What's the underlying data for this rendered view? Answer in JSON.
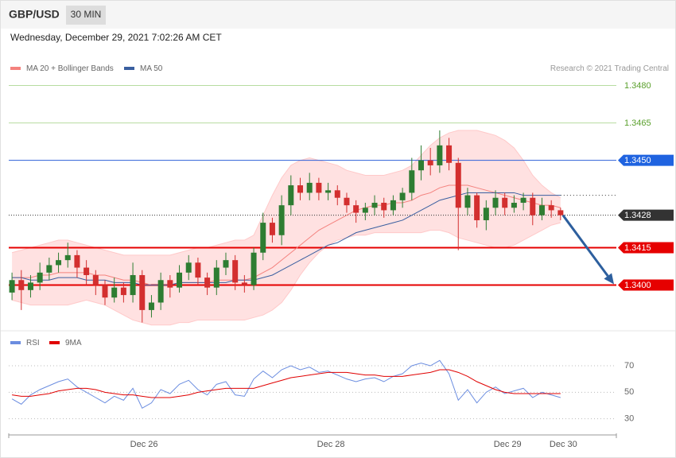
{
  "header": {
    "symbol": "GBP/USD",
    "timeframe": "30 MIN",
    "timestamp": "Wednesday, December 29, 2021 7:02:26 AM CET"
  },
  "chart_data": [
    {
      "type": "candlestick",
      "source": "Research © 2021 Trading Central",
      "up_color": "#2e7d32",
      "down_color": "#d32f2f",
      "band_color": "#ffc9c9",
      "open": [
        1.3397,
        1.3402,
        1.3398,
        1.3401,
        1.3405,
        1.3408,
        1.341,
        1.3412,
        1.3407,
        1.3404,
        1.34,
        1.3395,
        1.3399,
        1.3396,
        1.3404,
        1.339,
        1.3393,
        1.3402,
        1.3399,
        1.3405,
        1.3409,
        1.3403,
        1.3399,
        1.3407,
        1.341,
        1.3401,
        1.34,
        1.3413,
        1.3425,
        1.342,
        1.3432,
        1.344,
        1.3437,
        1.3441,
        1.3437,
        1.3438,
        1.3435,
        1.3432,
        1.3429,
        1.3431,
        1.3433,
        1.343,
        1.3434,
        1.3437,
        1.3446,
        1.345,
        1.3448,
        1.3456,
        1.3449,
        1.3431,
        1.3436,
        1.3426,
        1.3431,
        1.3435,
        1.3431,
        1.3433,
        1.3435,
        1.3428,
        1.3432,
        1.343
      ],
      "high": [
        1.3405,
        1.3406,
        1.3404,
        1.3409,
        1.3411,
        1.3413,
        1.3417,
        1.3414,
        1.341,
        1.3406,
        1.3402,
        1.3403,
        1.3401,
        1.3409,
        1.3406,
        1.3396,
        1.3405,
        1.3404,
        1.3408,
        1.3412,
        1.3411,
        1.3405,
        1.341,
        1.3413,
        1.3412,
        1.3404,
        1.3415,
        1.3429,
        1.3427,
        1.3436,
        1.3444,
        1.3443,
        1.3445,
        1.3443,
        1.3441,
        1.344,
        1.3437,
        1.3434,
        1.3433,
        1.3436,
        1.3435,
        1.3436,
        1.3439,
        1.3451,
        1.3456,
        1.3455,
        1.3462,
        1.3459,
        1.3451,
        1.3439,
        1.3437,
        1.3434,
        1.3438,
        1.3437,
        1.3436,
        1.3437,
        1.3437,
        1.3435,
        1.3434,
        1.3431
      ],
      "low": [
        1.3394,
        1.339,
        1.3395,
        1.3398,
        1.3402,
        1.3405,
        1.3407,
        1.3403,
        1.34,
        1.3396,
        1.3392,
        1.3393,
        1.3393,
        1.3393,
        1.3385,
        1.3387,
        1.339,
        1.3395,
        1.3397,
        1.3402,
        1.34,
        1.3396,
        1.3396,
        1.3404,
        1.3398,
        1.3397,
        1.3398,
        1.341,
        1.3417,
        1.3416,
        1.3428,
        1.3434,
        1.3434,
        1.3434,
        1.3434,
        1.3432,
        1.3429,
        1.3425,
        1.3426,
        1.3428,
        1.3427,
        1.3428,
        1.3431,
        1.3434,
        1.3442,
        1.3444,
        1.3445,
        1.3446,
        1.3414,
        1.3428,
        1.3423,
        1.3422,
        1.3428,
        1.3428,
        1.3429,
        1.343,
        1.3424,
        1.3426,
        1.3427,
        1.3426
      ],
      "close": [
        1.3402,
        1.3398,
        1.3401,
        1.3405,
        1.3408,
        1.341,
        1.3412,
        1.3407,
        1.3404,
        1.34,
        1.3395,
        1.3399,
        1.3396,
        1.3404,
        1.339,
        1.3393,
        1.3402,
        1.3399,
        1.3405,
        1.3409,
        1.3403,
        1.3399,
        1.3407,
        1.341,
        1.3401,
        1.34,
        1.3413,
        1.3425,
        1.342,
        1.3432,
        1.344,
        1.3437,
        1.3441,
        1.3437,
        1.3438,
        1.3435,
        1.3432,
        1.3429,
        1.3431,
        1.3433,
        1.343,
        1.3434,
        1.3437,
        1.3446,
        1.345,
        1.3448,
        1.3456,
        1.3449,
        1.3431,
        1.3436,
        1.3426,
        1.3431,
        1.3435,
        1.3431,
        1.3433,
        1.3435,
        1.3428,
        1.3432,
        1.343,
        1.3428
      ],
      "series": [
        {
          "name": "MA 20 + Bollinger Bands",
          "color": "#f4827e",
          "values": [
            1.3403,
            1.3403,
            1.3403,
            1.3404,
            1.3404,
            1.3405,
            1.3405,
            1.3405,
            1.3405,
            1.3404,
            1.3404,
            1.3403,
            1.3402,
            1.3402,
            1.3401,
            1.34,
            1.34,
            1.34,
            1.3401,
            1.3401,
            1.3401,
            1.3401,
            1.3402,
            1.3402,
            1.3402,
            1.3402,
            1.3403,
            1.3405,
            1.3407,
            1.341,
            1.3413,
            1.3416,
            1.3419,
            1.3422,
            1.3424,
            1.3426,
            1.3428,
            1.343,
            1.3431,
            1.3432,
            1.3432,
            1.3433,
            1.3433,
            1.3434,
            1.3436,
            1.3437,
            1.3439,
            1.344,
            1.344,
            1.344,
            1.3439,
            1.3438,
            1.3437,
            1.3436,
            1.3435,
            1.3434,
            1.3433,
            1.3432,
            1.3432,
            1.3431
          ],
          "upper": [
            1.3413,
            1.3414,
            1.3415,
            1.3416,
            1.3417,
            1.3418,
            1.3418,
            1.3417,
            1.3416,
            1.3415,
            1.3414,
            1.3413,
            1.3412,
            1.3412,
            1.3412,
            1.3412,
            1.3412,
            1.3412,
            1.3413,
            1.3414,
            1.3415,
            1.3415,
            1.3416,
            1.3417,
            1.3418,
            1.3418,
            1.342,
            1.3428,
            1.3436,
            1.3443,
            1.3448,
            1.345,
            1.3451,
            1.345,
            1.3449,
            1.3448,
            1.3446,
            1.3445,
            1.3444,
            1.3444,
            1.3444,
            1.3445,
            1.3446,
            1.3448,
            1.3452,
            1.3456,
            1.3459,
            1.3461,
            1.3462,
            1.3462,
            1.3462,
            1.3461,
            1.346,
            1.3458,
            1.3455,
            1.345,
            1.3444,
            1.344,
            1.3437,
            1.3435
          ],
          "lower": [
            1.3394,
            1.3393,
            1.3392,
            1.3392,
            1.3392,
            1.3392,
            1.3392,
            1.3393,
            1.3394,
            1.3393,
            1.3392,
            1.339,
            1.3388,
            1.3386,
            1.3385,
            1.3384,
            1.3384,
            1.3384,
            1.3385,
            1.3385,
            1.3386,
            1.3386,
            1.3386,
            1.3386,
            1.3386,
            1.3386,
            1.3387,
            1.3388,
            1.339,
            1.3393,
            1.3398,
            1.3404,
            1.3409,
            1.3413,
            1.3416,
            1.3418,
            1.3419,
            1.342,
            1.342,
            1.3421,
            1.3421,
            1.3421,
            1.3421,
            1.3421,
            1.3421,
            1.3422,
            1.3422,
            1.3421,
            1.3419,
            1.3418,
            1.3417,
            1.3416,
            1.3415,
            1.3415,
            1.3416,
            1.3418,
            1.342,
            1.3422,
            1.3424,
            1.3425
          ]
        },
        {
          "name": "MA 50",
          "color": "#3a5fa0",
          "values": [
            1.3403,
            1.3403,
            1.3402,
            1.3402,
            1.3402,
            1.3403,
            1.3403,
            1.3403,
            1.3402,
            1.3402,
            1.3402,
            1.3401,
            1.3401,
            1.3401,
            1.34,
            1.34,
            1.34,
            1.34,
            1.3401,
            1.3401,
            1.3401,
            1.3401,
            1.3401,
            1.3401,
            1.3402,
            1.3402,
            1.3402,
            1.3403,
            1.3404,
            1.3406,
            1.3408,
            1.341,
            1.3412,
            1.3414,
            1.3416,
            1.3417,
            1.3419,
            1.3421,
            1.3422,
            1.3423,
            1.3424,
            1.3425,
            1.3426,
            1.3428,
            1.343,
            1.3432,
            1.3434,
            1.3435,
            1.3436,
            1.3437,
            1.3437,
            1.3437,
            1.3437,
            1.3437,
            1.3437,
            1.3436,
            1.3436,
            1.3436,
            1.3436,
            1.3436
          ]
        }
      ],
      "levels": [
        {
          "value": 1.348,
          "label": "1.3480",
          "color": "#5aa02c",
          "line_color": "#b7dca0",
          "line": "solid",
          "label_style": "text"
        },
        {
          "value": 1.3465,
          "label": "1.3465",
          "color": "#5aa02c",
          "line_color": "#b7dca0",
          "line": "solid",
          "label_style": "text"
        },
        {
          "value": 1.345,
          "label": "1.3450",
          "color": "#1f63e0",
          "line_color": "#2e5fd8",
          "line": "solid",
          "label_style": "box"
        },
        {
          "value": 1.3428,
          "label": "1.3428",
          "color": "#333333",
          "line_color": "#333333",
          "line": "dotted",
          "label_style": "box"
        },
        {
          "value": 1.3415,
          "label": "1.3415",
          "color": "#e60000",
          "line_color": "#e60000",
          "line": "solid",
          "label_style": "box"
        },
        {
          "value": 1.34,
          "label": "1.3400",
          "color": "#e60000",
          "line_color": "#e60000",
          "line": "solid",
          "label_style": "box"
        }
      ],
      "arrow_color": "#2d5f9e",
      "xlim": [
        -0.35,
        65
      ],
      "ylim": [
        1.3382,
        1.3484
      ]
    },
    {
      "type": "line",
      "series": [
        {
          "name": "RSI",
          "color": "#6b8de0",
          "values": [
            45,
            41,
            48,
            52,
            55,
            58,
            60,
            54,
            50,
            46,
            42,
            47,
            44,
            53,
            38,
            42,
            52,
            49,
            56,
            59,
            52,
            48,
            56,
            58,
            48,
            47,
            60,
            66,
            61,
            67,
            70,
            67,
            69,
            65,
            66,
            63,
            60,
            58,
            60,
            61,
            58,
            62,
            64,
            70,
            72,
            70,
            74,
            64,
            44,
            52,
            42,
            50,
            54,
            49,
            51,
            53,
            46,
            50,
            48,
            46
          ]
        },
        {
          "name": "9MA",
          "color": "#e00000",
          "values": [
            48,
            47,
            47,
            48,
            49,
            51,
            52,
            53,
            53,
            52,
            50,
            49,
            48,
            48,
            47,
            46,
            46,
            46,
            47,
            48,
            50,
            51,
            52,
            53,
            53,
            53,
            53,
            55,
            57,
            59,
            61,
            62,
            63,
            64,
            65,
            65,
            65,
            64,
            63,
            63,
            62,
            62,
            62,
            63,
            64,
            65,
            67,
            67,
            65,
            62,
            58,
            55,
            52,
            50,
            49,
            49,
            49,
            49,
            49,
            49
          ]
        }
      ],
      "xlim": [
        -0.35,
        65
      ],
      "ylim": [
        19,
        82
      ],
      "yticks": [
        70,
        50,
        30
      ],
      "xticks": [
        {
          "value": 14.2,
          "label": "Dec 26"
        },
        {
          "value": 34.3,
          "label": "Dec 28"
        },
        {
          "value": 53.3,
          "label": "Dec 29"
        },
        {
          "value": 59.3,
          "label": "Dec 30"
        }
      ]
    }
  ]
}
